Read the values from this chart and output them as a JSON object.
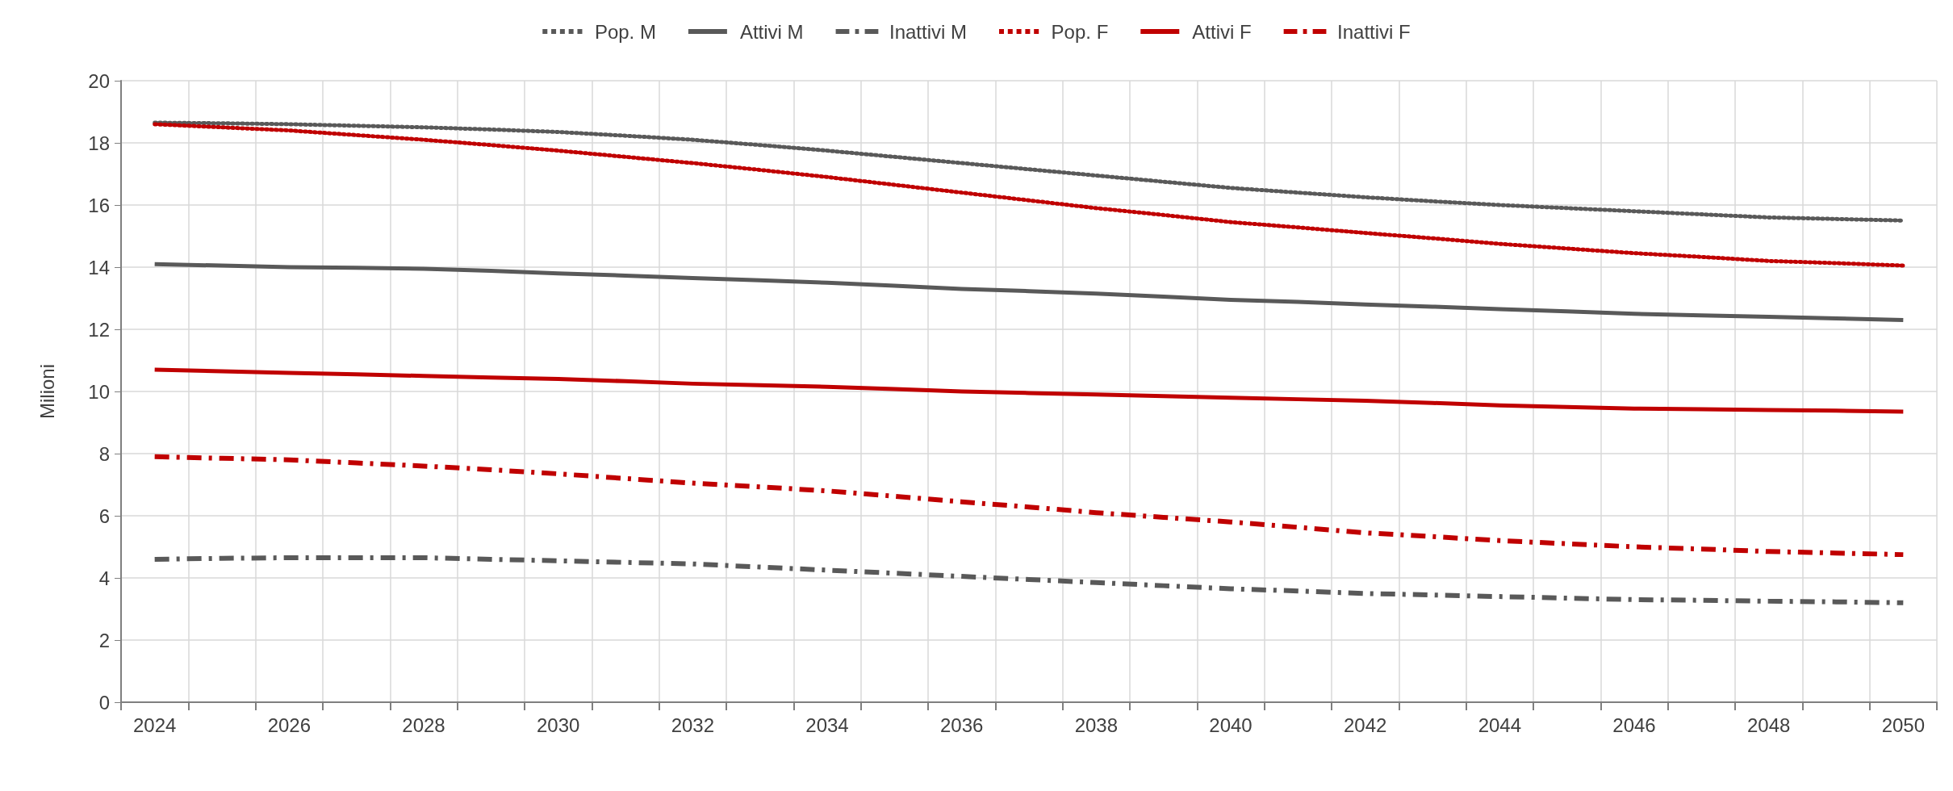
{
  "chart_data": {
    "type": "line",
    "ylabel": "Milioni",
    "categories": [
      "2024",
      null,
      "2026",
      null,
      "2028",
      null,
      "2030",
      null,
      "2032",
      null,
      "2034",
      null,
      "2036",
      null,
      "2038",
      null,
      "2040",
      null,
      "2042",
      null,
      "2044",
      null,
      "2046",
      null,
      "2048",
      null,
      "2050"
    ],
    "series": [
      {
        "name": "Pop. M",
        "color": "#595959",
        "line_style": "dotted",
        "values": [
          18.65,
          18.63,
          18.6,
          18.55,
          18.5,
          18.43,
          18.35,
          18.23,
          18.1,
          17.93,
          17.75,
          17.55,
          17.35,
          17.15,
          16.95,
          16.75,
          16.55,
          16.4,
          16.25,
          16.12,
          16.0,
          15.9,
          15.8,
          15.7,
          15.6,
          15.55,
          15.5
        ]
      },
      {
        "name": "Attivi M",
        "color": "#595959",
        "line_style": "solid",
        "values": [
          14.1,
          14.05,
          14.0,
          13.98,
          13.95,
          13.88,
          13.8,
          13.73,
          13.65,
          13.58,
          13.5,
          13.4,
          13.3,
          13.23,
          13.15,
          13.05,
          12.95,
          12.88,
          12.8,
          12.73,
          12.65,
          12.58,
          12.5,
          12.45,
          12.4,
          12.35,
          12.3
        ]
      },
      {
        "name": "Inattivi M",
        "color": "#595959",
        "line_style": "dashed",
        "values": [
          4.6,
          4.63,
          4.65,
          4.65,
          4.65,
          4.6,
          4.55,
          4.5,
          4.45,
          4.35,
          4.25,
          4.15,
          4.05,
          3.95,
          3.85,
          3.75,
          3.65,
          3.58,
          3.5,
          3.45,
          3.4,
          3.35,
          3.3,
          3.28,
          3.25,
          3.23,
          3.2
        ]
      },
      {
        "name": "Pop. F",
        "color": "#c00000",
        "line_style": "dotted",
        "values": [
          18.6,
          18.5,
          18.4,
          18.25,
          18.1,
          17.93,
          17.75,
          17.55,
          17.35,
          17.13,
          16.9,
          16.65,
          16.4,
          16.15,
          15.9,
          15.68,
          15.45,
          15.28,
          15.1,
          14.93,
          14.75,
          14.6,
          14.45,
          14.33,
          14.2,
          14.13,
          14.05
        ]
      },
      {
        "name": "Attivi F",
        "color": "#c00000",
        "line_style": "solid",
        "values": [
          10.7,
          10.65,
          10.6,
          10.55,
          10.5,
          10.45,
          10.4,
          10.33,
          10.25,
          10.2,
          10.15,
          10.08,
          10.0,
          9.95,
          9.9,
          9.85,
          9.8,
          9.75,
          9.7,
          9.63,
          9.55,
          9.5,
          9.45,
          9.43,
          9.4,
          9.38,
          9.35
        ]
      },
      {
        "name": "Inattivi F",
        "color": "#c00000",
        "line_style": "dashed",
        "values": [
          7.9,
          7.85,
          7.8,
          7.7,
          7.6,
          7.48,
          7.35,
          7.2,
          7.05,
          6.93,
          6.8,
          6.63,
          6.45,
          6.28,
          6.1,
          5.95,
          5.8,
          5.63,
          5.45,
          5.33,
          5.2,
          5.1,
          5.0,
          4.93,
          4.85,
          4.8,
          4.75
        ]
      }
    ],
    "ylim": [
      0,
      20
    ],
    "yticks": [
      0,
      2,
      4,
      6,
      8,
      10,
      12,
      14,
      16,
      18,
      20
    ],
    "grid": true,
    "legend": "top",
    "marker": "none"
  }
}
